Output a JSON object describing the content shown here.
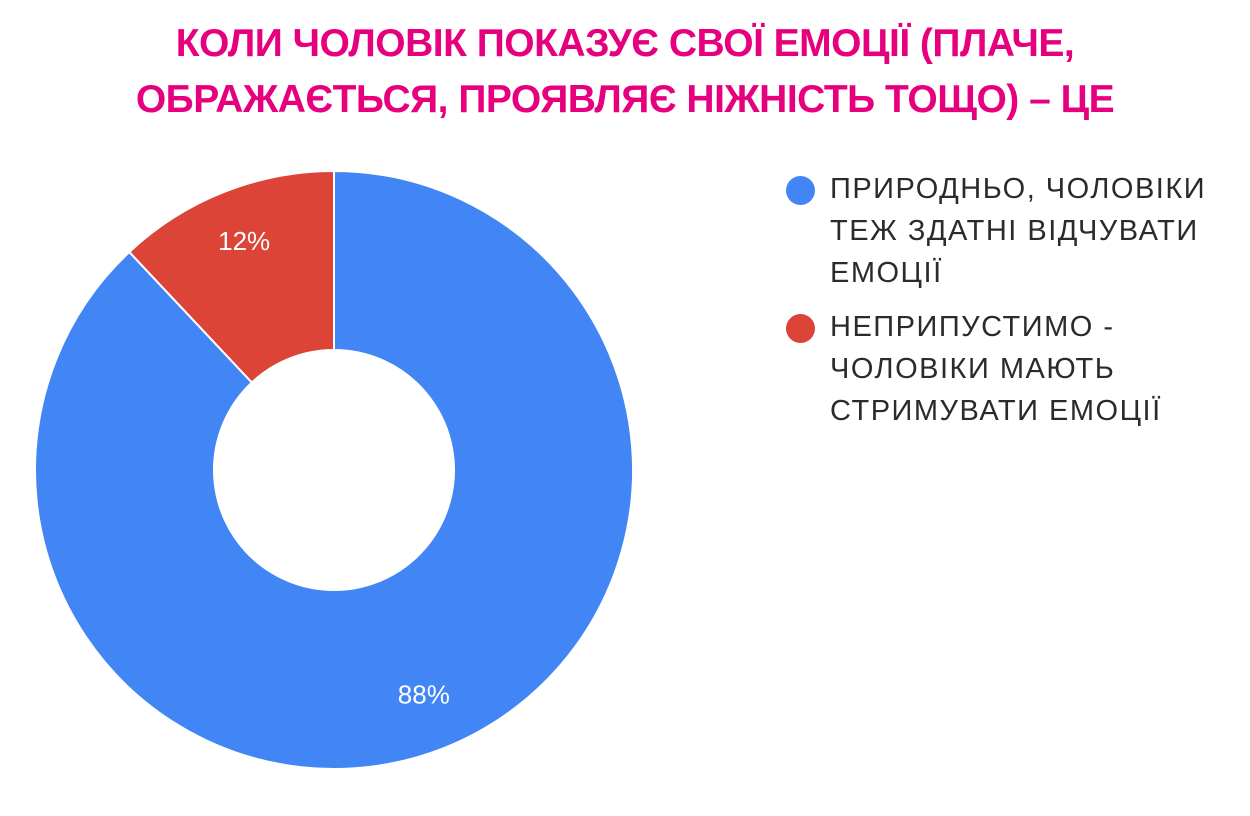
{
  "title_lines": [
    "КОЛИ ЧОЛОВІК ПОКАЗУЄ СВОЇ ЕМОЦІЇ (ПЛАЧЕ,",
    "ОБРАЖАЄТЬСЯ, ПРОЯВЛЯЄ НІЖНІСТЬ ТОЩО) – ЦЕ"
  ],
  "chart_data": {
    "type": "pie",
    "donut": true,
    "title": "КОЛИ ЧОЛОВІК ПОКАЗУЄ СВОЇ ЕМОЦІЇ (ПЛАЧЕ, ОБРАЖАЄТЬСЯ, ПРОЯВЛЯЄ НІЖНІСТЬ ТОЩО) – ЦЕ",
    "legend_position": "right",
    "slices": [
      {
        "label_lines": [
          "ПРИРОДНЬО, ЧОЛОВІКИ",
          "ТЕЖ ЗДАТНІ ВІДЧУВАТИ",
          "ЕМОЦІЇ"
        ],
        "value": 88,
        "display": "88%",
        "color": "#4285f4"
      },
      {
        "label_lines": [
          "НЕПРИПУСТИМО -",
          "ЧОЛОВІКИ МАЮТЬ",
          "СТРИМУВАТИ ЕМОЦІЇ"
        ],
        "value": 12,
        "display": "12%",
        "color": "#db4437"
      }
    ]
  }
}
